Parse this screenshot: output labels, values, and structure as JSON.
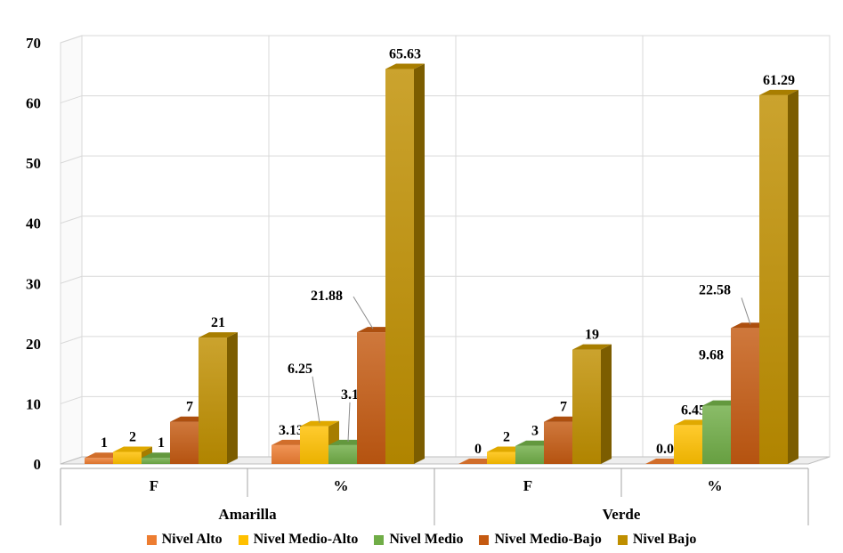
{
  "chart_data": {
    "type": "bar",
    "title": "",
    "xlabel": "",
    "ylabel": "",
    "ylim": [
      0,
      70
    ],
    "y_ticks": [
      0,
      10,
      20,
      30,
      40,
      50,
      60,
      70
    ],
    "grid": true,
    "legend_position": "bottom",
    "groups": [
      {
        "label": "Amarilla",
        "subcategories": [
          "F",
          "%"
        ]
      },
      {
        "label": "Verde",
        "subcategories": [
          "F",
          "%"
        ]
      }
    ],
    "categories": [
      "F",
      "%",
      "F",
      "%"
    ],
    "series": [
      {
        "name": "Nivel Alto",
        "color": "#ED7D31",
        "values": [
          1,
          3.13,
          0,
          0.0
        ],
        "labels": [
          "1",
          "3.13",
          "0",
          "0.00"
        ]
      },
      {
        "name": "Nivel Medio-Alto",
        "color": "#FFC000",
        "values": [
          2,
          6.25,
          2,
          6.45
        ],
        "labels": [
          "2",
          "6.25",
          "2",
          "6.45"
        ]
      },
      {
        "name": "Nivel Medio",
        "color": "#70AD47",
        "values": [
          1,
          3.13,
          3,
          9.68
        ],
        "labels": [
          "1",
          "3.13",
          "3",
          "9.68"
        ]
      },
      {
        "name": "Nivel Medio-Bajo",
        "color": "#C55A11",
        "values": [
          7,
          21.88,
          7,
          22.58
        ],
        "labels": [
          "7",
          "21.88",
          "7",
          "22.58"
        ]
      },
      {
        "name": "Nivel Bajo",
        "color": "#BF8F00",
        "values": [
          21,
          65.63,
          19,
          61.29
        ],
        "labels": [
          "21",
          "65.63",
          "19",
          "61.29"
        ]
      }
    ]
  }
}
